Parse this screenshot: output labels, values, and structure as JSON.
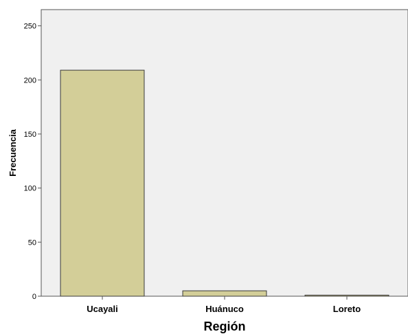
{
  "chart_data": {
    "type": "bar",
    "title": "",
    "xlabel": "Región",
    "ylabel": "Frecuencia",
    "categories": [
      "Ucayali",
      "Huánuco",
      "Loreto"
    ],
    "values": [
      209,
      5,
      1
    ],
    "ylim": [
      0,
      265
    ],
    "yticks": [
      0,
      50,
      100,
      150,
      200,
      250
    ],
    "grid": false,
    "legend": "none",
    "colors": {
      "plot_background": "#f0f0f0",
      "bar_fill": "#d3ce98",
      "bar_stroke": "#3a3a3a",
      "axis": "#555555"
    }
  }
}
